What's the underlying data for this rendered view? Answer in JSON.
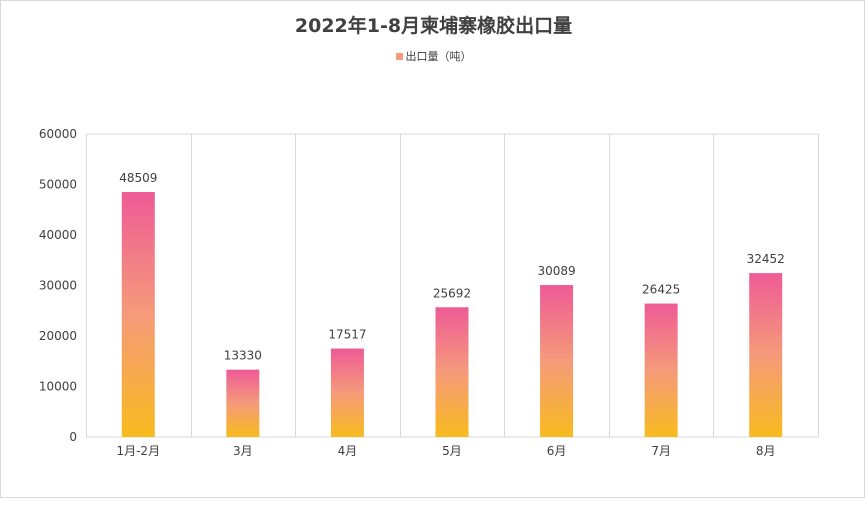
{
  "chart_data": {
    "type": "bar",
    "title": "2022年1-8月柬埔寨橡胶出口量",
    "categories": [
      "1月-2月",
      "3月",
      "4月",
      "5月",
      "6月",
      "7月",
      "8月"
    ],
    "series": [
      {
        "name": "出口量（吨）",
        "values": [
          48509,
          13330,
          17517,
          25692,
          30089,
          26425,
          32452
        ]
      }
    ],
    "xlabel": "",
    "ylabel": "",
    "ylim": [
      0,
      60000
    ],
    "yticks": [
      "0",
      "10000",
      "20000",
      "30000",
      "40000",
      "50000",
      "60000"
    ],
    "grid": "vertical",
    "legend_position": "top",
    "data_labels": true,
    "colors": {
      "bar_top": "#ee5b96",
      "bar_mid": "#f59a7a",
      "bar_bottom": "#f8bb1e",
      "legend": "#f59a7a"
    }
  }
}
